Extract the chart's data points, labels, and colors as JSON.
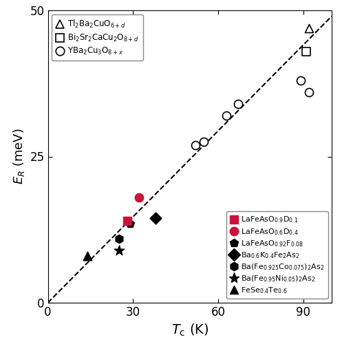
{
  "xlabel": "$\\mathit{T}_{\\mathrm{c}}$ (K)",
  "ylabel": "$E_{R}$ (meV)",
  "xlim": [
    0,
    100
  ],
  "ylim": [
    0,
    50
  ],
  "xticks": [
    0,
    30,
    60,
    90
  ],
  "yticks": [
    0,
    25,
    50
  ],
  "cuprate_triangle": {
    "data": [
      [
        92,
        47
      ]
    ],
    "marker": "^",
    "facecolor": "white",
    "edgecolor": "black",
    "size": 75,
    "lw": 1.2
  },
  "cuprate_square": {
    "data": [
      [
        91,
        43
      ]
    ],
    "marker": "s",
    "facecolor": "white",
    "edgecolor": "black",
    "size": 75,
    "lw": 1.2
  },
  "cuprate_circle": {
    "data": [
      [
        52,
        27
      ],
      [
        55,
        27.5
      ],
      [
        63,
        32
      ],
      [
        67,
        34
      ],
      [
        89,
        38
      ],
      [
        92,
        36
      ]
    ],
    "marker": "o",
    "facecolor": "white",
    "edgecolor": "black",
    "size": 75,
    "lw": 1.2
  },
  "red_square": {
    "data": [
      [
        28,
        14
      ]
    ],
    "marker": "s",
    "facecolor": "#C8143C",
    "edgecolor": "#C8143C",
    "size": 80,
    "lw": 1.0
  },
  "red_circle": {
    "data": [
      [
        32,
        18
      ]
    ],
    "marker": "o",
    "facecolor": "#C8143C",
    "edgecolor": "#C8143C",
    "size": 80,
    "lw": 1.0
  },
  "black_pentagon": {
    "data": [
      [
        29,
        13.5
      ]
    ],
    "marker": "p",
    "facecolor": "black",
    "edgecolor": "black",
    "size": 80,
    "lw": 1.0
  },
  "black_diamond": {
    "data": [
      [
        38,
        14.5
      ]
    ],
    "marker": "D",
    "facecolor": "black",
    "edgecolor": "black",
    "size": 75,
    "lw": 1.0
  },
  "black_hexagon": {
    "data": [
      [
        25,
        11
      ]
    ],
    "marker": "h",
    "facecolor": "black",
    "edgecolor": "black",
    "size": 80,
    "lw": 1.0
  },
  "black_star": {
    "data": [
      [
        25,
        9
      ]
    ],
    "marker": "*",
    "facecolor": "black",
    "edgecolor": "black",
    "size": 120,
    "lw": 1.0
  },
  "black_triangle": {
    "data": [
      [
        14,
        8
      ]
    ],
    "marker": "^",
    "facecolor": "black",
    "edgecolor": "black",
    "size": 85,
    "lw": 1.0
  },
  "leg1_labels": [
    "Tl$_2$Ba$_2$CuO$_{6+d}$",
    "Bi$_2$Sr$_2$CaCu$_2$O$_{8+d}$",
    "YBa$_2$Cu$_3$O$_{8+x}$"
  ],
  "leg2_labels": [
    "LaFeAsO$_{0.9}$D$_{0.1}$",
    "LaFeAsO$_{0.6}$D$_{0.4}$",
    "LaFeAsO$_{0.92}$F$_{0.08}$",
    "Ba$_{0.6}$K$_{0.4}$Fe$_2$As$_2$",
    "Ba(Fe$_{0.925}$Co$_{0.075}$)$_2$As$_2$",
    "Ba(Fe$_{0.95}$Ni$_{0.05}$)$_2$As$_2$",
    "FeSe$_{0.4}$Te$_{0.6}$"
  ]
}
